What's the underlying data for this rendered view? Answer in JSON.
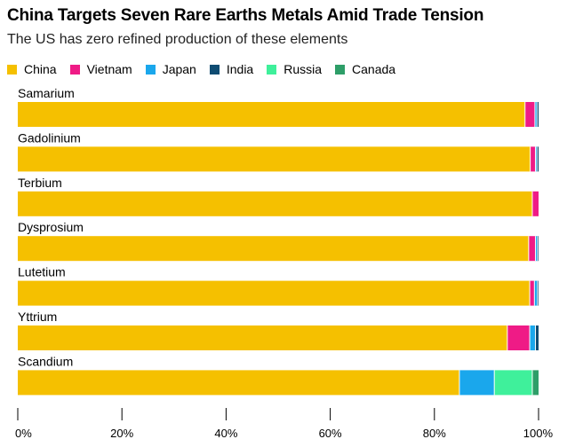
{
  "chart_data": {
    "type": "bar",
    "orientation": "horizontal",
    "stacked": true,
    "title": "China Targets Seven Rare Earths Metals Amid Trade Tension",
    "subtitle": "The US has zero refined production of these elements",
    "categories": [
      "Samarium",
      "Gadolinium",
      "Terbium",
      "Dysprosium",
      "Lutetium",
      "Yttrium",
      "Scandium"
    ],
    "series": [
      {
        "name": "China",
        "color": "#f5c000",
        "values": [
          97.4,
          98.4,
          98.8,
          98.1,
          98.3,
          94.0,
          84.8
        ]
      },
      {
        "name": "Vietnam",
        "color": "#ef1b86",
        "values": [
          1.9,
          1.0,
          1.2,
          1.3,
          0.9,
          4.3,
          0.0
        ]
      },
      {
        "name": "Japan",
        "color": "#1aa7ec",
        "values": [
          0.4,
          0.3,
          0.0,
          0.4,
          0.6,
          1.1,
          6.7
        ]
      },
      {
        "name": "India",
        "color": "#0f4c72",
        "values": [
          0.3,
          0.3,
          0.0,
          0.2,
          0.2,
          0.6,
          0.0
        ]
      },
      {
        "name": "Russia",
        "color": "#3ff09b",
        "values": [
          0.0,
          0.0,
          0.0,
          0.0,
          0.0,
          0.0,
          7.3
        ]
      },
      {
        "name": "Canada",
        "color": "#2e9e68",
        "values": [
          0.0,
          0.0,
          0.0,
          0.0,
          0.0,
          0.0,
          1.2
        ]
      }
    ],
    "xlim": [
      0,
      100
    ],
    "xticks": [
      "0%",
      "20%",
      "40%",
      "60%",
      "80%",
      "100%"
    ],
    "xlabel": "",
    "ylabel": "",
    "legend_position": "top-left"
  }
}
